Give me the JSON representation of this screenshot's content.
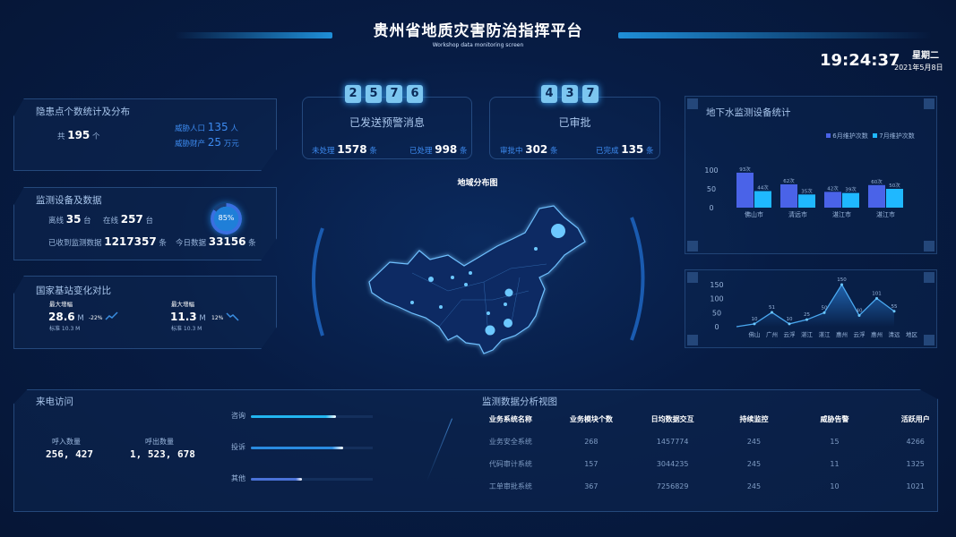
{
  "header": {
    "title": "贵州省地质灾害防治指挥平台",
    "subtitle": "Workshop data monitoring screen",
    "time": "19:24:37",
    "weekday": "星期二",
    "date": "2021年5月8日"
  },
  "hazard": {
    "title": "隐患点个数统计及分布",
    "total_prefix": "共",
    "total": "195",
    "total_unit": "个",
    "pop_label": "威胁人口",
    "pop": "135",
    "pop_unit": "人",
    "prop_label": "威胁财产",
    "prop": "25",
    "prop_unit": "万元"
  },
  "devices": {
    "title": "监测设备及数据",
    "offline_label": "离线",
    "offline": "35",
    "online_label": "在线",
    "online": "257",
    "unit_tai": "台",
    "received_label": "已收到监测数据",
    "received": "1217357",
    "unit_tiao": "条",
    "today_label": "今日数据",
    "today": "33156",
    "percent_text": "85%",
    "percent": 85
  },
  "station": {
    "title": "国家基站变化对比",
    "items": [
      {
        "label": "最大增幅",
        "value": "28.6",
        "unit": "M",
        "change": "-22%",
        "trend": "up",
        "base": "标准 10.3 M"
      },
      {
        "label": "最大增幅",
        "value": "11.3",
        "unit": "M",
        "change": "12%",
        "trend": "down",
        "base": "标准 10.3 M"
      }
    ]
  },
  "warning": {
    "digits": [
      "2",
      "5",
      "7",
      "6"
    ],
    "title": "已发送预警消息",
    "left_label": "未处理",
    "left_value": "1578",
    "right_label": "已处理",
    "right_value": "998",
    "unit": "条"
  },
  "approval": {
    "digits": [
      "4",
      "3",
      "7"
    ],
    "title": "已审批",
    "left_label": "审批中",
    "left_value": "302",
    "right_label": "已完成",
    "right_value": "135",
    "unit": "条"
  },
  "map": {
    "title": "地域分布图"
  },
  "chart_data": [
    {
      "type": "bar",
      "title": "地下水监测设备统计",
      "categories": [
        "佛山市",
        "清远市",
        "湛江市",
        "湛江市"
      ],
      "series": [
        {
          "name": "6月维护次数",
          "values": [
            93,
            62,
            42,
            60
          ],
          "labels": [
            "93次",
            "62次",
            "42次",
            "60次"
          ],
          "color": "#4a63e8"
        },
        {
          "name": "7月维护次数",
          "values": [
            44,
            35,
            39,
            50
          ],
          "labels": [
            "44次",
            "35次",
            "39次",
            "50次"
          ],
          "color": "#1fb8ff"
        }
      ],
      "yticks": [
        "100",
        "50",
        "0"
      ],
      "ylim": [
        0,
        100
      ],
      "legend": "top-right"
    },
    {
      "type": "area",
      "categories": [
        "佛山",
        "广州",
        "云浮",
        "湛江",
        "湛江",
        "惠州",
        "云浮",
        "惠州",
        "清远"
      ],
      "values": [
        10,
        51,
        10,
        25,
        50,
        150,
        40,
        101,
        55
      ],
      "xlabel": "地区",
      "yticks": [
        "150",
        "100",
        "50",
        "0"
      ],
      "ylim": [
        0,
        150
      ]
    }
  ],
  "calls": {
    "title": "来电访问",
    "in_label": "呼入数量",
    "in_value": "256, 427",
    "out_label": "呼出数量",
    "out_value": "1, 523, 678",
    "bars": [
      {
        "label": "咨询",
        "percent": 70,
        "color": "#22b6f0"
      },
      {
        "label": "投诉",
        "percent": 76,
        "color": "#2a8be0"
      },
      {
        "label": "其他",
        "percent": 42,
        "color": "#4a72d8"
      }
    ]
  },
  "analysis": {
    "title": "监测数据分析视图",
    "columns": [
      "业务系统名称",
      "业务模块个数",
      "日均数据交互",
      "持续监控",
      "威胁告警",
      "活跃用户"
    ],
    "rows": [
      [
        "业务安全系统",
        "268",
        "1457774",
        "245",
        "15",
        "4266"
      ],
      [
        "代码审计系统",
        "157",
        "3044235",
        "245",
        "11",
        "1325"
      ],
      [
        "工单审批系统",
        "367",
        "7256829",
        "245",
        "10",
        "1021"
      ]
    ]
  }
}
